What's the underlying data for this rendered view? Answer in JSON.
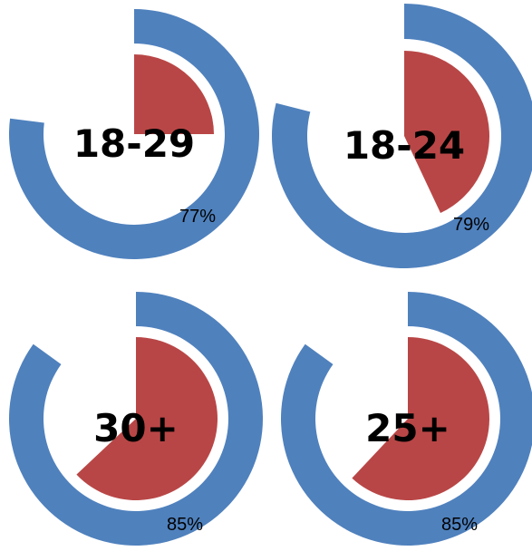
{
  "chart_data": [
    {
      "type": "radial-bar",
      "title": "18-29",
      "series": [
        {
          "name": "",
          "value": 77,
          "unit": "%",
          "color": "#4F81BD"
        },
        {
          "name": "",
          "value": 25,
          "unit": "%",
          "color": "#B94646"
        }
      ],
      "value_label": "77%"
    },
    {
      "type": "radial-bar",
      "title": "18-24",
      "series": [
        {
          "name": "",
          "value": 79,
          "unit": "%",
          "color": "#4F81BD"
        },
        {
          "name": "",
          "value": 43,
          "unit": "%",
          "color": "#B94646"
        }
      ],
      "value_label": "79%"
    },
    {
      "type": "radial-bar",
      "title": "30+",
      "series": [
        {
          "name": "",
          "value": 85,
          "unit": "%",
          "color": "#4F81BD"
        },
        {
          "name": "",
          "value": 63,
          "unit": "%",
          "color": "#B94646"
        }
      ],
      "value_label": "85%"
    },
    {
      "type": "radial-bar",
      "title": "25+",
      "series": [
        {
          "name": "",
          "value": 85,
          "unit": "%",
          "color": "#4F81BD"
        },
        {
          "name": "",
          "value": 62,
          "unit": "%",
          "color": "#B94646"
        }
      ],
      "value_label": "85%"
    }
  ]
}
